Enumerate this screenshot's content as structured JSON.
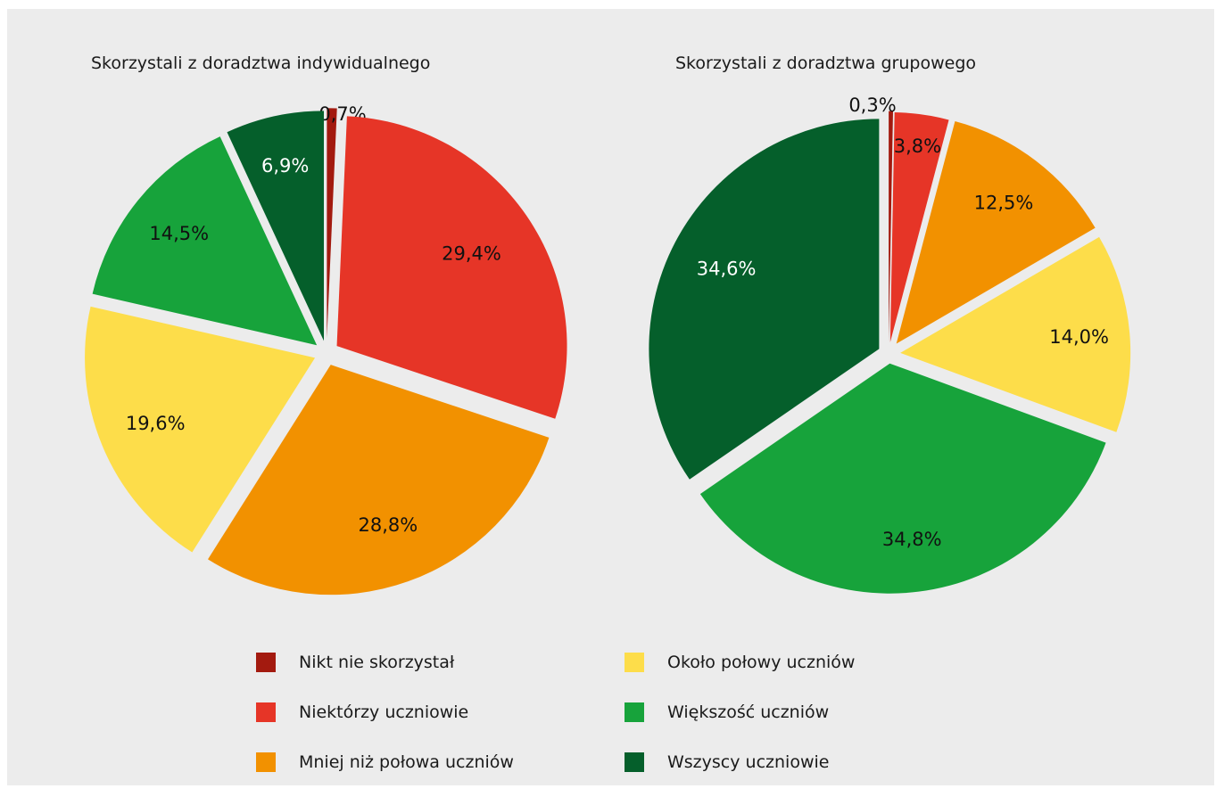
{
  "chart_data": [
    {
      "type": "pie",
      "title": "Skorzystali z doradztwa indywidualnego",
      "categories": [
        "Nikt nie skorzystał",
        "Niektórzy uczniowie",
        "Mniej niż połowa uczniów",
        "Około połowy uczniów",
        "Większość uczniów",
        "Wszyscy uczniowie"
      ],
      "values": [
        0.7,
        29.4,
        28.8,
        19.6,
        14.5,
        6.9
      ],
      "labels": [
        "0,7%",
        "29,4%",
        "28,8%",
        "19,6%",
        "14,5%",
        "6,9%"
      ]
    },
    {
      "type": "pie",
      "title": "Skorzystali z doradztwa grupowego",
      "categories": [
        "Nikt nie skorzystał",
        "Niektórzy uczniowie",
        "Mniej niż połowa uczniów",
        "Około połowy uczniów",
        "Większość uczniów",
        "Wszyscy uczniowie"
      ],
      "values": [
        0.3,
        3.8,
        12.5,
        14.0,
        34.8,
        34.6
      ],
      "labels": [
        "0,3%",
        "3,8%",
        "12,5%",
        "14,0%",
        "34,8%",
        "34,6%"
      ]
    }
  ],
  "legend": {
    "placement": "bottom",
    "items": [
      {
        "label": "Nikt nie skorzystał",
        "color": "#a31a0f"
      },
      {
        "label": "Niektórzy uczniowie",
        "color": "#e63527"
      },
      {
        "label": "Mniej niż połowa uczniów",
        "color": "#f29100"
      },
      {
        "label": "Około połowy uczniów",
        "color": "#fddd4a"
      },
      {
        "label": "Większość uczniów",
        "color": "#17a33b"
      },
      {
        "label": "Wszyscy uczniowie",
        "color": "#055f2b"
      }
    ]
  }
}
